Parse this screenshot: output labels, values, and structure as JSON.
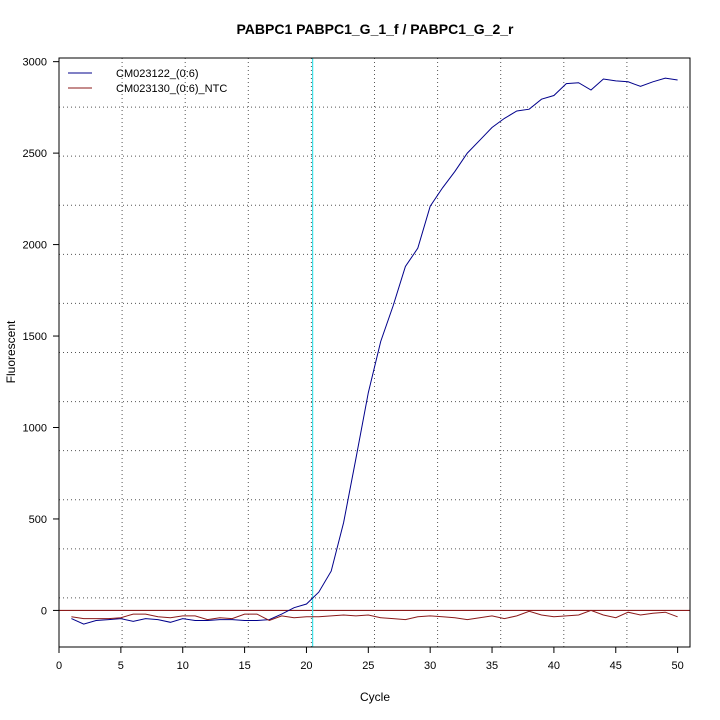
{
  "chart_data": {
    "type": "line",
    "title": "PABPC1  PABPC1_G_1_f / PABPC1_G_2_r",
    "xlabel": "Cycle",
    "ylabel": "Fluorescent",
    "xlim": [
      0,
      51
    ],
    "ylim": [
      -200,
      3020
    ],
    "xticks": [
      "0",
      "5",
      "10",
      "15",
      "20",
      "25",
      "30",
      "35",
      "40",
      "45",
      "50"
    ],
    "yticks": [
      "0",
      "500",
      "1000",
      "1500",
      "2000",
      "2500",
      "3000"
    ],
    "grid": true,
    "legend_position": "top-left",
    "threshold_cycle": 20.5,
    "baseline": 0,
    "x": [
      1,
      2,
      3,
      4,
      5,
      6,
      7,
      8,
      9,
      10,
      11,
      12,
      13,
      14,
      15,
      16,
      17,
      18,
      19,
      20,
      21,
      22,
      23,
      24,
      25,
      26,
      27,
      28,
      29,
      30,
      31,
      32,
      33,
      34,
      35,
      36,
      37,
      38,
      39,
      40,
      41,
      42,
      43,
      44,
      45,
      46,
      47,
      48,
      49,
      50
    ],
    "series": [
      {
        "name": "CM023122_(0:6)",
        "color": "#00008B",
        "values": [
          -45,
          -75,
          -55,
          -50,
          -45,
          -60,
          -45,
          -50,
          -65,
          -45,
          -55,
          -55,
          -50,
          -50,
          -55,
          -55,
          -50,
          -20,
          15,
          35,
          100,
          215,
          480,
          830,
          1190,
          1470,
          1665,
          1880,
          1980,
          2210,
          2310,
          2400,
          2500,
          2570,
          2640,
          2690,
          2730,
          2740,
          2795,
          2815,
          2880,
          2885,
          2845,
          2905,
          2895,
          2890,
          2865,
          2890,
          2910,
          2900
        ]
      },
      {
        "name": "CM023130_(0:6)_NTC",
        "color": "#8B1A1A",
        "values": [
          -35,
          -45,
          -45,
          -45,
          -40,
          -20,
          -20,
          -35,
          -40,
          -30,
          -30,
          -50,
          -40,
          -45,
          -20,
          -20,
          -55,
          -30,
          -40,
          -35,
          -35,
          -30,
          -25,
          -30,
          -25,
          -40,
          -45,
          -50,
          -35,
          -30,
          -35,
          -40,
          -50,
          -40,
          -30,
          -45,
          -30,
          -5,
          -25,
          -35,
          -30,
          -25,
          0,
          -25,
          -40,
          -10,
          -25,
          -15,
          -10,
          -35
        ]
      }
    ]
  }
}
